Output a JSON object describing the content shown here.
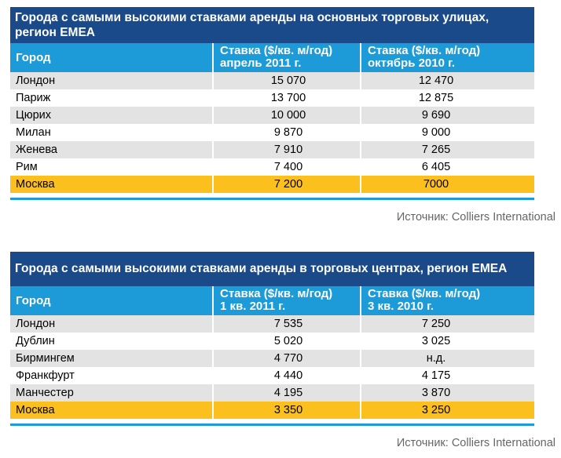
{
  "table1": {
    "title": "Города с самыми высокими ставками аренды на основных торговых улицах, регион EMEA",
    "headers": {
      "city": "Город",
      "col2_line1": "Ставка ($/кв. м/год)",
      "col2_line2": "апрель 2011 г.",
      "col3_line1": "Ставка ($/кв. м/год)",
      "col3_line2": "октябрь 2010 г."
    },
    "rows": [
      {
        "city": "Лондон",
        "v1": "15 070",
        "v2": "12 470"
      },
      {
        "city": "Париж",
        "v1": "13 700",
        "v2": "12 875"
      },
      {
        "city": "Цюрих",
        "v1": "10 000",
        "v2": "9 690"
      },
      {
        "city": "Милан",
        "v1": "9 870",
        "v2": "9 000"
      },
      {
        "city": "Женева",
        "v1": "7 910",
        "v2": "7 265"
      },
      {
        "city": "Рим",
        "v1": "7 400",
        "v2": "6 405"
      },
      {
        "city": "Москва",
        "v1": "7 200",
        "v2": "7000"
      }
    ],
    "source": "Источник: Colliers International"
  },
  "table2": {
    "title": "Города с самыми высокими ставками аренды в торговых центрах, регион EMEA",
    "headers": {
      "city": "Город",
      "col2_line1": "Ставка ($/кв. м/год)",
      "col2_line2": "1 кв. 2011 г.",
      "col3_line1": "Ставка ($/кв. м/год)",
      "col3_line2": "3 кв. 2010 г."
    },
    "rows": [
      {
        "city": "Лондон",
        "v1": "7 535",
        "v2": "7 250"
      },
      {
        "city": "Дублин",
        "v1": "5 020",
        "v2": "3 025"
      },
      {
        "city": "Бирмингем",
        "v1": "4 770",
        "v2": "н.д."
      },
      {
        "city": "Франкфурт",
        "v1": "4 440",
        "v2": "4 175"
      },
      {
        "city": "Манчестер",
        "v1": "4 195",
        "v2": "3 870"
      },
      {
        "city": "Москва",
        "v1": "3 350",
        "v2": "3 250"
      }
    ],
    "source": "Источник: Colliers International"
  },
  "colors": {
    "title_bg": "#1a4a8a",
    "header_bg": "#1d9ad8",
    "alt_row": "#e3e3e3",
    "highlight_row": "#fbbf1e",
    "source_text": "#666666"
  }
}
